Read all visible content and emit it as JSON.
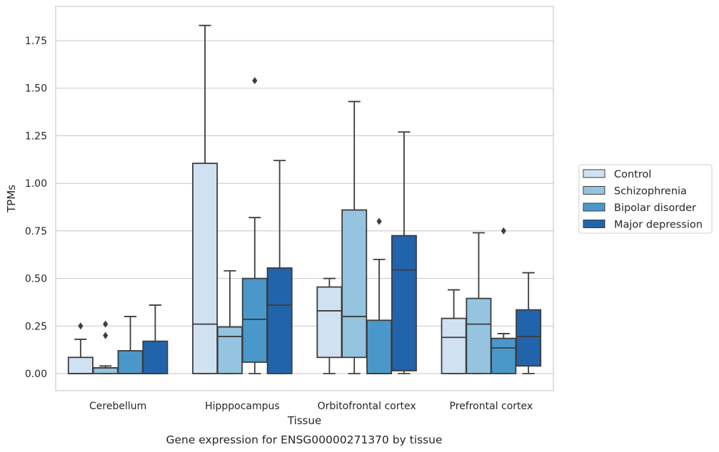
{
  "chart_data": {
    "type": "boxplot",
    "title": "",
    "caption": "Gene expression for ENSG00000271370 by tissue",
    "xlabel": "Tissue",
    "ylabel": "TPMs",
    "ylim": [
      -0.09,
      1.93
    ],
    "yticks": [
      0.0,
      0.25,
      0.5,
      0.75,
      1.0,
      1.25,
      1.5,
      1.75
    ],
    "ytick_labels": [
      "0.00",
      "0.25",
      "0.50",
      "0.75",
      "1.00",
      "1.25",
      "1.50",
      "1.75"
    ],
    "categories": [
      "Cerebellum",
      "Hipppocampus",
      "Orbitofrontal cortex",
      "Prefrontal cortex"
    ],
    "grid": "horizontal",
    "legend_position": "right",
    "series": [
      {
        "name": "Control",
        "color": "#d0e1f2",
        "boxes": [
          {
            "whislo": 0.0,
            "q1": 0.0,
            "med": 0.0,
            "q3": 0.085,
            "whishi": 0.18,
            "fliers": [
              0.25
            ]
          },
          {
            "whislo": 0.0,
            "q1": 0.0,
            "med": 0.26,
            "q3": 1.105,
            "whishi": 1.83,
            "fliers": []
          },
          {
            "whislo": 0.0,
            "q1": 0.085,
            "med": 0.33,
            "q3": 0.455,
            "whishi": 0.5,
            "fliers": []
          },
          {
            "whislo": 0.0,
            "q1": 0.0,
            "med": 0.19,
            "q3": 0.29,
            "whishi": 0.44,
            "fliers": []
          }
        ]
      },
      {
        "name": "Schizophrenia",
        "color": "#94c4df",
        "boxes": [
          {
            "whislo": 0.0,
            "q1": 0.0,
            "med": 0.03,
            "q3": 0.03,
            "whishi": 0.04,
            "fliers": [
              0.2,
              0.26
            ]
          },
          {
            "whislo": 0.0,
            "q1": 0.0,
            "med": 0.195,
            "q3": 0.245,
            "whishi": 0.54,
            "fliers": []
          },
          {
            "whislo": 0.0,
            "q1": 0.085,
            "med": 0.3,
            "q3": 0.86,
            "whishi": 1.43,
            "fliers": []
          },
          {
            "whislo": 0.0,
            "q1": 0.0,
            "med": 0.26,
            "q3": 0.395,
            "whishi": 0.74,
            "fliers": []
          }
        ]
      },
      {
        "name": "Bipolar disorder",
        "color": "#4a98c9",
        "boxes": [
          {
            "whislo": 0.0,
            "q1": 0.0,
            "med": 0.0,
            "q3": 0.12,
            "whishi": 0.3,
            "fliers": []
          },
          {
            "whislo": 0.0,
            "q1": 0.06,
            "med": 0.285,
            "q3": 0.5,
            "whishi": 0.82,
            "fliers": [
              1.54
            ]
          },
          {
            "whislo": 0.0,
            "q1": 0.0,
            "med": 0.0,
            "q3": 0.28,
            "whishi": 0.6,
            "fliers": [
              0.8
            ]
          },
          {
            "whislo": 0.0,
            "q1": 0.0,
            "med": 0.135,
            "q3": 0.185,
            "whishi": 0.21,
            "fliers": [
              0.75
            ]
          }
        ]
      },
      {
        "name": "Major depression",
        "color": "#2164ab",
        "boxes": [
          {
            "whislo": 0.0,
            "q1": 0.0,
            "med": 0.0,
            "q3": 0.17,
            "whishi": 0.36,
            "fliers": []
          },
          {
            "whislo": 0.0,
            "q1": 0.0,
            "med": 0.36,
            "q3": 0.555,
            "whishi": 1.12,
            "fliers": []
          },
          {
            "whislo": 0.0,
            "q1": 0.015,
            "med": 0.545,
            "q3": 0.725,
            "whishi": 1.27,
            "fliers": []
          },
          {
            "whislo": 0.0,
            "q1": 0.04,
            "med": 0.195,
            "q3": 0.335,
            "whishi": 0.53,
            "fliers": []
          }
        ]
      }
    ]
  }
}
